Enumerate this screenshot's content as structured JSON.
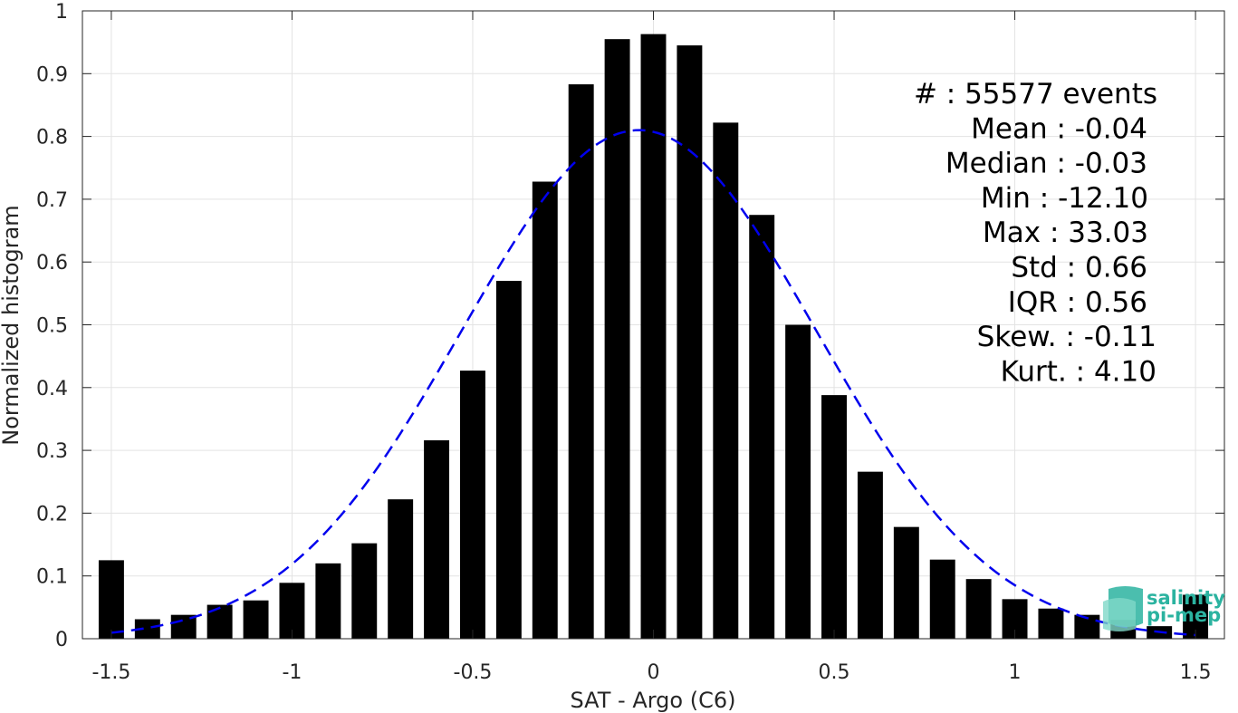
{
  "chart_data": {
    "type": "bar",
    "xlabel": "SAT - Argo (C6)",
    "ylabel": "Normalized histogram",
    "xlim": [
      -1.58,
      1.58
    ],
    "ylim": [
      0,
      1
    ],
    "xticks": [
      "-1.5",
      "-1",
      "-0.5",
      "0",
      "0.5",
      "1",
      "1.5"
    ],
    "xtick_values": [
      -1.5,
      -1,
      -0.5,
      0,
      0.5,
      1,
      1.5
    ],
    "yticks": [
      "0",
      "0.1",
      "0.2",
      "0.3",
      "0.4",
      "0.5",
      "0.6",
      "0.7",
      "0.8",
      "0.9",
      "1"
    ],
    "ytick_values": [
      0,
      0.1,
      0.2,
      0.3,
      0.4,
      0.5,
      0.6,
      0.7,
      0.8,
      0.9,
      1
    ],
    "grid": true,
    "bar_color": "#000000",
    "bars": {
      "x": [
        -1.5,
        -1.4,
        -1.3,
        -1.2,
        -1.1,
        -1.0,
        -0.9,
        -0.8,
        -0.7,
        -0.6,
        -0.5,
        -0.4,
        -0.3,
        -0.2,
        -0.1,
        0.0,
        0.1,
        0.2,
        0.3,
        0.4,
        0.5,
        0.6,
        0.7,
        0.8,
        0.9,
        1.0,
        1.1,
        1.2,
        1.3,
        1.4,
        1.5
      ],
      "values": [
        0.125,
        0.031,
        0.038,
        0.054,
        0.061,
        0.089,
        0.12,
        0.152,
        0.222,
        0.316,
        0.427,
        0.57,
        0.728,
        0.883,
        0.955,
        0.963,
        0.945,
        0.822,
        0.675,
        0.5,
        0.388,
        0.266,
        0.178,
        0.126,
        0.095,
        0.063,
        0.048,
        0.038,
        0.03,
        0.02,
        0.07
      ]
    },
    "fit_curve": {
      "style": "dashed",
      "color": "#0000ee",
      "mean": -0.04,
      "std": 0.49,
      "peak": 0.81,
      "x_range": [
        -1.5,
        1.5
      ]
    },
    "annotations": [
      "#  : 55577 events",
      "Mean : -0.04",
      "Median : -0.03",
      "Min : -12.10",
      "Max : 33.03",
      "Std : 0.66",
      "IQR : 0.56",
      "Skew. : -0.11",
      "Kurt. : 4.10"
    ]
  },
  "logo": {
    "line1": "salinity",
    "line2": "pi-mep",
    "color": "#2bb3a0"
  }
}
